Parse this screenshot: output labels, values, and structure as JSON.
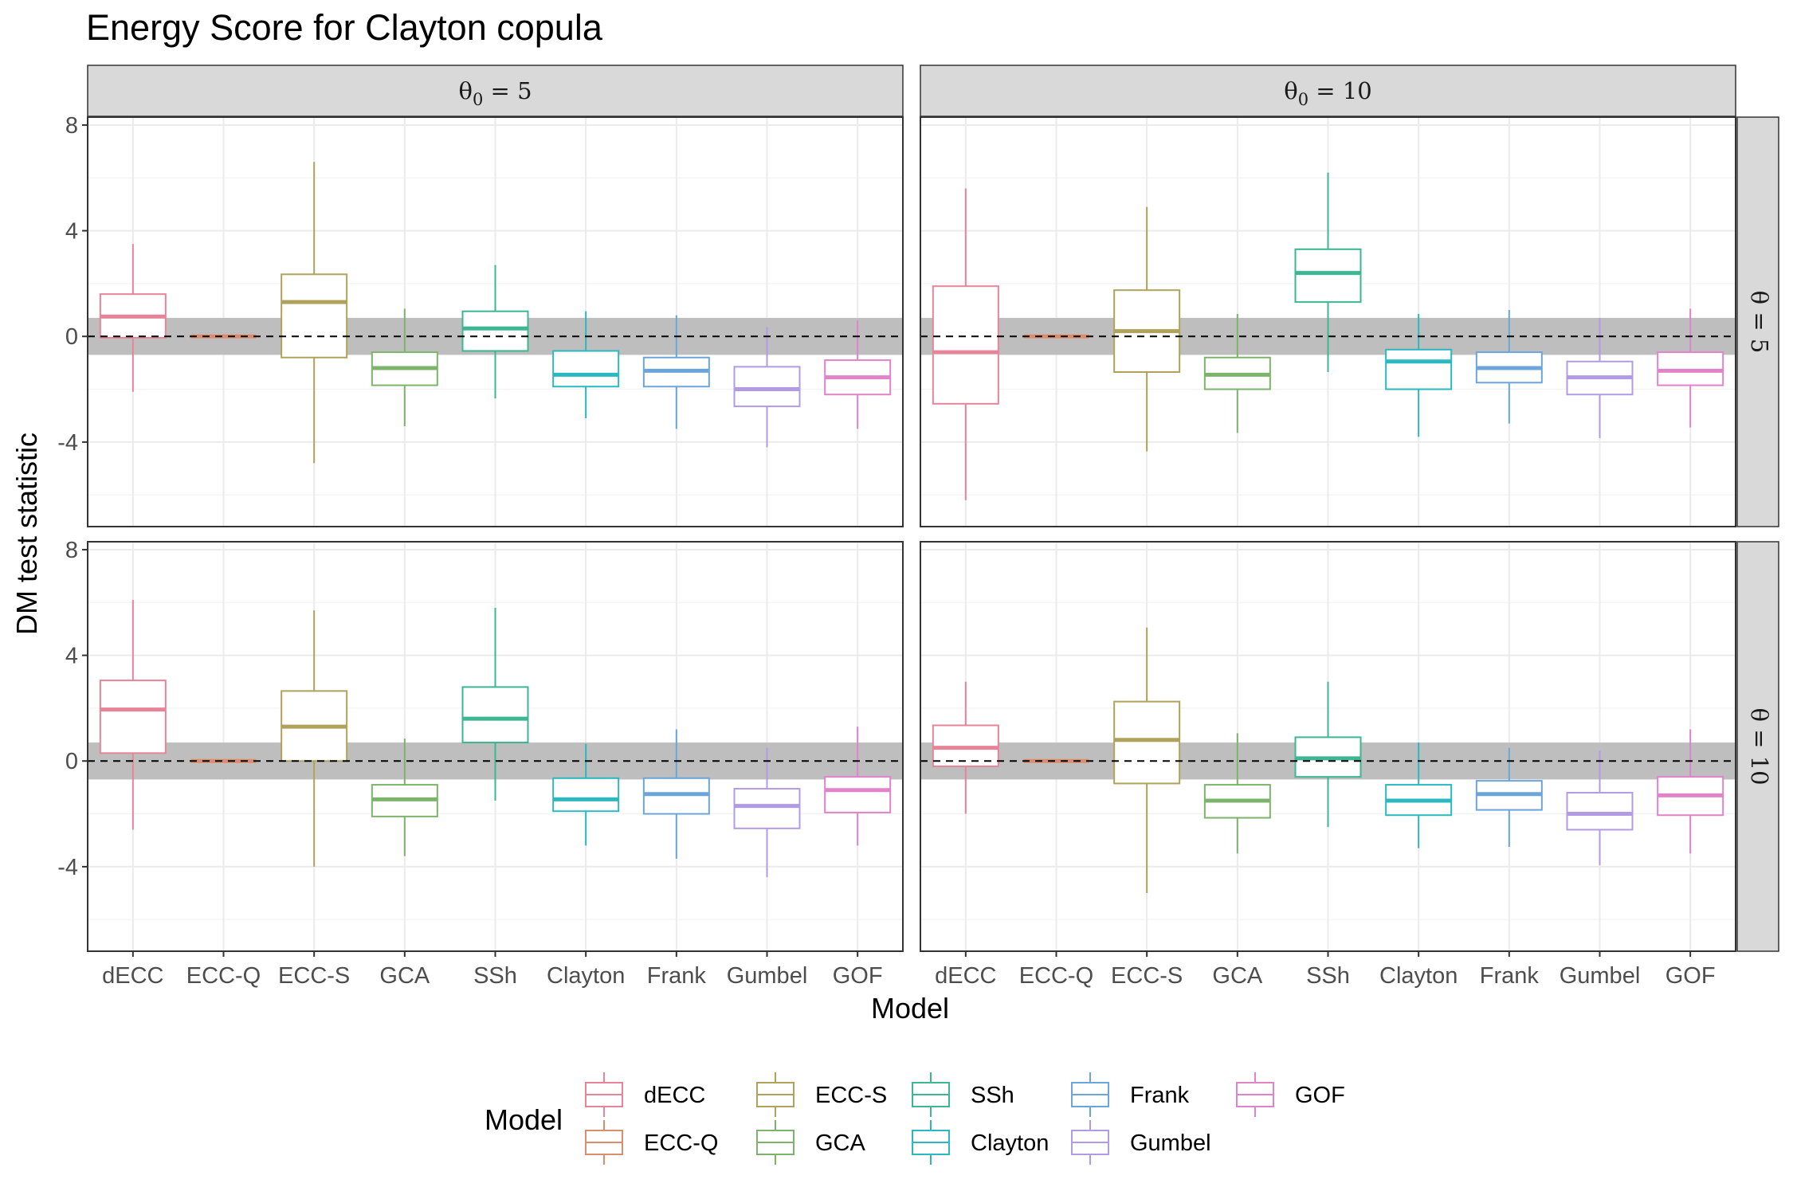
{
  "chart_data": {
    "type": "boxplot",
    "title": "Energy Score for Clayton copula",
    "xlabel": "Model",
    "ylabel": "DM test statistic",
    "ylim": [
      -7.2,
      8.3
    ],
    "yticks": [
      -4,
      0,
      4,
      8
    ],
    "ytick_labels": [
      "-4",
      "0",
      "4",
      "8"
    ],
    "grid": true,
    "reference_line": 0,
    "reference_band": [
      -0.7,
      0.7
    ],
    "legend": {
      "title": "Model",
      "position": "bottom"
    },
    "categories": [
      "dECC",
      "ECC-Q",
      "ECC-S",
      "GCA",
      "SSh",
      "Clayton",
      "Frank",
      "Gumbel",
      "GOF"
    ],
    "colors": {
      "dECC": "#E7849A",
      "ECC-Q": "#DB8E6E",
      "ECC-S": "#B0A25B",
      "GCA": "#7DB46B",
      "SSh": "#3DB692",
      "Clayton": "#2BB8C1",
      "Frank": "#6CA5DC",
      "Gumbel": "#B19BE4",
      "GOF": "#E083CB"
    },
    "column_strips": [
      {
        "prefix": "θ",
        "sub": "0",
        "rest": " = 5"
      },
      {
        "prefix": "θ",
        "sub": "0",
        "rest": " = 10"
      }
    ],
    "row_strips": [
      "θ = 5",
      "θ = 10"
    ],
    "panels": [
      {
        "row": 0,
        "col": 0,
        "boxes": [
          {
            "model": "dECC",
            "whislo": -2.1,
            "q1": -0.05,
            "med": 0.75,
            "q3": 1.6,
            "whishi": 3.5
          },
          {
            "model": "ECC-Q",
            "whislo": 0,
            "q1": 0,
            "med": 0,
            "q3": 0,
            "whishi": 0
          },
          {
            "model": "ECC-S",
            "whislo": -4.8,
            "q1": -0.8,
            "med": 1.3,
            "q3": 2.35,
            "whishi": 6.6
          },
          {
            "model": "GCA",
            "whislo": -3.4,
            "q1": -1.85,
            "med": -1.2,
            "q3": -0.6,
            "whishi": 1.05
          },
          {
            "model": "SSh",
            "whislo": -2.35,
            "q1": -0.55,
            "med": 0.3,
            "q3": 0.95,
            "whishi": 2.7
          },
          {
            "model": "Clayton",
            "whislo": -3.1,
            "q1": -1.9,
            "med": -1.45,
            "q3": -0.55,
            "whishi": 0.95
          },
          {
            "model": "Frank",
            "whislo": -3.5,
            "q1": -1.9,
            "med": -1.3,
            "q3": -0.8,
            "whishi": 0.8
          },
          {
            "model": "Gumbel",
            "whislo": -4.2,
            "q1": -2.65,
            "med": -2.0,
            "q3": -1.15,
            "whishi": 0.35
          },
          {
            "model": "GOF",
            "whislo": -3.5,
            "q1": -2.2,
            "med": -1.55,
            "q3": -0.9,
            "whishi": 0.6
          }
        ]
      },
      {
        "row": 0,
        "col": 1,
        "boxes": [
          {
            "model": "dECC",
            "whislo": -6.2,
            "q1": -2.55,
            "med": -0.6,
            "q3": 1.9,
            "whishi": 5.6
          },
          {
            "model": "ECC-Q",
            "whislo": 0,
            "q1": 0,
            "med": 0,
            "q3": 0,
            "whishi": 0
          },
          {
            "model": "ECC-S",
            "whislo": -4.35,
            "q1": -1.35,
            "med": 0.2,
            "q3": 1.75,
            "whishi": 4.9
          },
          {
            "model": "GCA",
            "whislo": -3.65,
            "q1": -2.0,
            "med": -1.45,
            "q3": -0.8,
            "whishi": 0.85
          },
          {
            "model": "SSh",
            "whislo": -1.35,
            "q1": 1.3,
            "med": 2.4,
            "q3": 3.3,
            "whishi": 6.2
          },
          {
            "model": "Clayton",
            "whislo": -3.8,
            "q1": -2.0,
            "med": -0.95,
            "q3": -0.5,
            "whishi": 0.85
          },
          {
            "model": "Frank",
            "whislo": -3.3,
            "q1": -1.75,
            "med": -1.2,
            "q3": -0.6,
            "whishi": 1.0
          },
          {
            "model": "Gumbel",
            "whislo": -3.85,
            "q1": -2.2,
            "med": -1.55,
            "q3": -0.95,
            "whishi": 0.7
          },
          {
            "model": "GOF",
            "whislo": -3.45,
            "q1": -1.85,
            "med": -1.3,
            "q3": -0.6,
            "whishi": 1.05
          }
        ]
      },
      {
        "row": 1,
        "col": 0,
        "boxes": [
          {
            "model": "dECC",
            "whislo": -2.6,
            "q1": 0.3,
            "med": 1.95,
            "q3": 3.05,
            "whishi": 6.1
          },
          {
            "model": "ECC-Q",
            "whislo": 0,
            "q1": 0,
            "med": 0,
            "q3": 0,
            "whishi": 0
          },
          {
            "model": "ECC-S",
            "whislo": -4.0,
            "q1": 0.0,
            "med": 1.3,
            "q3": 2.65,
            "whishi": 5.7
          },
          {
            "model": "GCA",
            "whislo": -3.6,
            "q1": -2.1,
            "med": -1.45,
            "q3": -0.9,
            "whishi": 0.85
          },
          {
            "model": "SSh",
            "whislo": -1.5,
            "q1": 0.7,
            "med": 1.6,
            "q3": 2.8,
            "whishi": 5.8
          },
          {
            "model": "Clayton",
            "whislo": -3.2,
            "q1": -1.9,
            "med": -1.45,
            "q3": -0.65,
            "whishi": 0.65
          },
          {
            "model": "Frank",
            "whislo": -3.7,
            "q1": -2.0,
            "med": -1.25,
            "q3": -0.65,
            "whishi": 1.2
          },
          {
            "model": "Gumbel",
            "whislo": -4.4,
            "q1": -2.55,
            "med": -1.7,
            "q3": -1.05,
            "whishi": 0.5
          },
          {
            "model": "GOF",
            "whislo": -3.2,
            "q1": -1.95,
            "med": -1.1,
            "q3": -0.6,
            "whishi": 1.3
          }
        ]
      },
      {
        "row": 1,
        "col": 1,
        "boxes": [
          {
            "model": "dECC",
            "whislo": -2.0,
            "q1": -0.2,
            "med": 0.5,
            "q3": 1.35,
            "whishi": 3.0
          },
          {
            "model": "ECC-Q",
            "whislo": 0,
            "q1": 0,
            "med": 0,
            "q3": 0,
            "whishi": 0
          },
          {
            "model": "ECC-S",
            "whislo": -5.0,
            "q1": -0.85,
            "med": 0.8,
            "q3": 2.25,
            "whishi": 5.05
          },
          {
            "model": "GCA",
            "whislo": -3.5,
            "q1": -2.15,
            "med": -1.5,
            "q3": -0.9,
            "whishi": 1.05
          },
          {
            "model": "SSh",
            "whislo": -2.5,
            "q1": -0.6,
            "med": 0.1,
            "q3": 0.9,
            "whishi": 3.0
          },
          {
            "model": "Clayton",
            "whislo": -3.3,
            "q1": -2.05,
            "med": -1.5,
            "q3": -0.9,
            "whishi": 0.7
          },
          {
            "model": "Frank",
            "whislo": -3.25,
            "q1": -1.85,
            "med": -1.25,
            "q3": -0.75,
            "whishi": 0.5
          },
          {
            "model": "Gumbel",
            "whislo": -3.95,
            "q1": -2.6,
            "med": -2.0,
            "q3": -1.2,
            "whishi": 0.4
          },
          {
            "model": "GOF",
            "whislo": -3.5,
            "q1": -2.05,
            "med": -1.3,
            "q3": -0.6,
            "whishi": 1.2
          }
        ]
      }
    ]
  }
}
